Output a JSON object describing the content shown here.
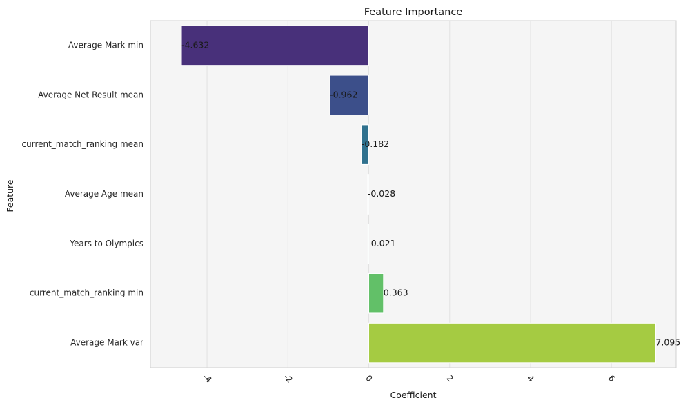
{
  "chart_data": {
    "type": "bar",
    "orientation": "horizontal",
    "title": "Feature Importance",
    "xlabel": "Coefficient",
    "ylabel": "Feature",
    "xlim": [
      -5.4,
      7.6
    ],
    "xticks": [
      -4,
      -2,
      0,
      2,
      4,
      6
    ],
    "xtick_labels": [
      "-4",
      "-2",
      "0",
      "2",
      "4",
      "6"
    ],
    "grid": true,
    "categories": [
      "Average Mark min",
      "Average Net Result mean",
      "current_match_ranking mean",
      "Average Age mean",
      "Years to Olympics",
      "current_match_ranking min",
      "Average Mark var"
    ],
    "values": [
      -4.632,
      -0.962,
      -0.182,
      -0.028,
      -0.021,
      0.363,
      7.095
    ],
    "value_labels": [
      "-4.632",
      "-0.962",
      "-0.182",
      "-0.028",
      "-0.021",
      "0.363",
      "7.095"
    ],
    "colors": [
      "#48307a",
      "#3c4f8a",
      "#2f718e",
      "#2a898e",
      "#26a785",
      "#62c068",
      "#a5cb42"
    ]
  }
}
